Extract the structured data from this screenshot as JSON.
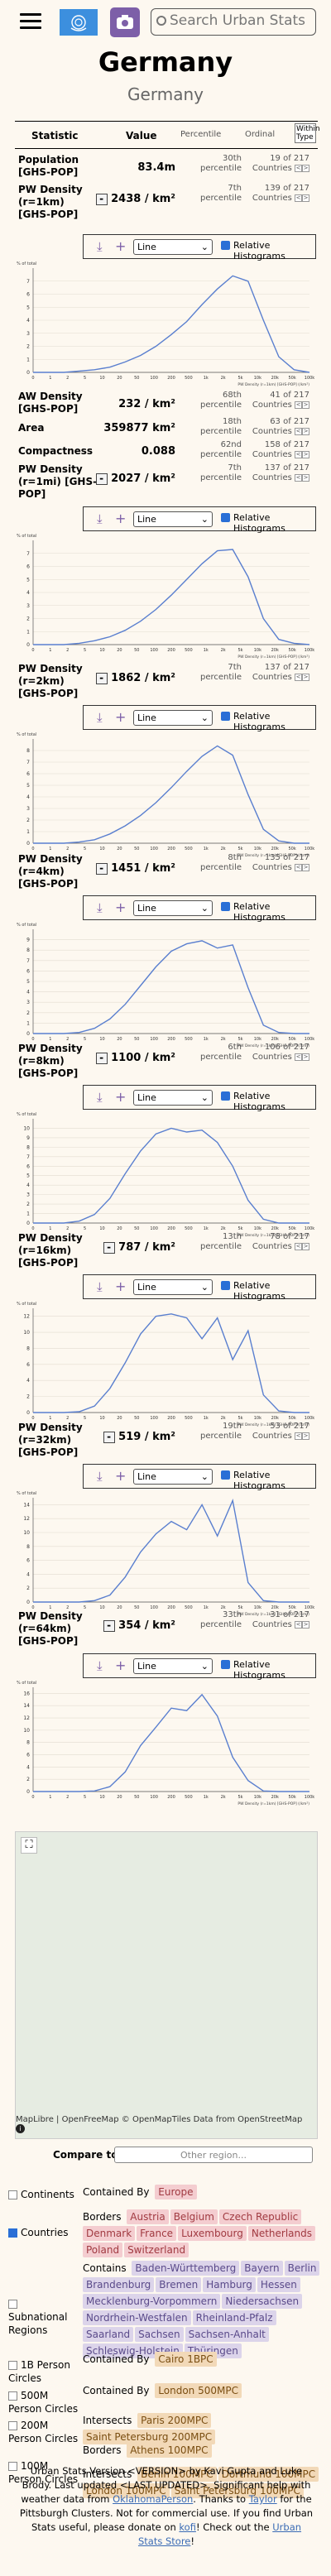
{
  "header": {
    "search_placeholder": "Search Urban Stats"
  },
  "title": "Germany",
  "subtitle": "Germany",
  "table_headers": {
    "statistic": "Statistic",
    "value": "Value",
    "percentile": "Percentile",
    "ordinal": "Ordinal",
    "within_type": "Within Type"
  },
  "rows": [
    {
      "name": "Population [GHS-POP]",
      "value": "83.4m",
      "pct1": "30th",
      "pct2": "percentile",
      "ord1": "19 of 217",
      "ord2": "Countries"
    },
    {
      "name": "PW Density (r=1km) [GHS-POP]",
      "value": "2438 / km²",
      "pct1": "7th",
      "pct2": "percentile",
      "ord1": "139 of 217",
      "ord2": "Countries"
    },
    {
      "name": "AW Density [GHS-POP]",
      "value": "232 / km²",
      "pct1": "68th",
      "pct2": "percentile",
      "ord1": "41 of 217",
      "ord2": "Countries"
    },
    {
      "name": "Area",
      "value": "359877 km²",
      "pct1": "18th",
      "pct2": "percentile",
      "ord1": "63 of 217",
      "ord2": "Countries"
    },
    {
      "name": "Compactness",
      "value": "0.088",
      "pct1": "62nd",
      "pct2": "percentile",
      "ord1": "158 of 217",
      "ord2": "Countries"
    },
    {
      "name": "PW Density (r=1mi) [GHS-POP]",
      "value": "2027 / km²",
      "pct1": "7th",
      "pct2": "percentile",
      "ord1": "137 of 217",
      "ord2": "Countries"
    },
    {
      "name": "PW Density (r=2km) [GHS-POP]",
      "value": "1862 / km²",
      "pct1": "7th",
      "pct2": "percentile",
      "ord1": "137 of 217",
      "ord2": "Countries"
    },
    {
      "name": "PW Density (r=4km) [GHS-POP]",
      "value": "1451 / km²",
      "pct1": "8th",
      "pct2": "percentile",
      "ord1": "135 of 217",
      "ord2": "Countries"
    },
    {
      "name": "PW Density (r=8km) [GHS-POP]",
      "value": "1100 / km²",
      "pct1": "6th",
      "pct2": "percentile",
      "ord1": "106 of 217",
      "ord2": "Countries"
    },
    {
      "name": "PW Density (r=16km) [GHS-POP]",
      "value": "787 / km²",
      "pct1": "13th",
      "pct2": "percentile",
      "ord1": "78 of 217",
      "ord2": "Countries"
    },
    {
      "name": "PW Density (r=32km) [GHS-POP]",
      "value": "519 / km²",
      "pct1": "19th",
      "pct2": "percentile",
      "ord1": "53 of 217",
      "ord2": "Countries"
    },
    {
      "name": "PW Density (r=64km) [GHS-POP]",
      "value": "354 / km²",
      "pct1": "33th",
      "pct2": "percentile",
      "ord1": "31 of 217",
      "ord2": "Countries"
    }
  ],
  "hist_controls": {
    "select_value": "Line",
    "relative_label": "Relative Histograms"
  },
  "map": {
    "attribution": "MapLibre | OpenFreeMap © OpenMapTiles Data from OpenStreetMap"
  },
  "compare": {
    "label": "Compare to:",
    "placeholder": "Other region..."
  },
  "related": [
    {
      "kind": "Continents",
      "checked": false,
      "lines": [
        {
          "verb": "Contained By",
          "tags": [
            "Europe"
          ],
          "color": "red"
        }
      ]
    },
    {
      "kind": "Countries",
      "checked": true,
      "lines": [
        {
          "verb": "Borders",
          "tags": [
            "Austria",
            "Belgium",
            "Czech Republic",
            "Denmark",
            "France",
            "Luxembourg",
            "Netherlands",
            "Poland",
            "Switzerland"
          ],
          "color": "red"
        }
      ]
    },
    {
      "kind": "Subnational Regions",
      "checked": false,
      "lines": [
        {
          "verb": "Contains",
          "tags": [
            "Baden-Württemberg",
            "Bayern",
            "Berlin",
            "Brandenburg",
            "Bremen",
            "Hamburg",
            "Hessen",
            "Mecklenburg-Vorpommern",
            "Niedersachsen",
            "Nordrhein-Westfalen",
            "Rheinland-Pfalz",
            "Saarland",
            "Sachsen",
            "Sachsen-Anhalt",
            "Schleswig-Holstein",
            "Thüringen"
          ],
          "color": "purple"
        }
      ]
    },
    {
      "kind": "1B Person Circles",
      "checked": false,
      "lines": [
        {
          "verb": "Contained By",
          "tags": [
            "Cairo 1BPC"
          ],
          "color": "orange"
        }
      ]
    },
    {
      "kind": "500M Person Circles",
      "checked": false,
      "lines": [
        {
          "verb": "Contained By",
          "tags": [
            "London 500MPC"
          ],
          "color": "orange"
        }
      ]
    },
    {
      "kind": "200M Person Circles",
      "checked": false,
      "lines": [
        {
          "verb": "Intersects",
          "tags": [
            "Paris 200MPC",
            "Saint Petersburg 200MPC"
          ],
          "color": "orange"
        }
      ]
    },
    {
      "kind": "100M Person Circles",
      "checked": false,
      "lines": [
        {
          "verb": "Borders",
          "tags": [
            "Athens 100MPC"
          ],
          "color": "orange"
        },
        {
          "verb": "Intersects",
          "tags": [
            "Berlin 100MPC",
            "Dortmund 100MPC",
            "London 100MPC",
            "Saint Petersburg 100MPC"
          ],
          "color": "orange"
        }
      ]
    }
  ],
  "footer": {
    "t1": "Urban Stats Version <VERSION> by Kavi Gupta and Luke Brody. Last updated <LAST UPDATED>. Significant help with weather data from ",
    "l1": "OklahomaPerson",
    "t2": ". Thanks to ",
    "l2": "Taylor",
    "t3": " for the Pittsburgh Clusters. Not for commercial use. If you find Urban Stats useful, please donate on ",
    "l3": "kofi",
    "t4": "! Check out the ",
    "l4": "Urban Stats Store",
    "t5": "!"
  },
  "charts_meta": {
    "y_label": "% of total",
    "x_label": "PW Density (r=1km) [GHS-POP] (/km²)",
    "x_ticks": [
      "0",
      "1",
      "2",
      "5",
      "10",
      "20",
      "50",
      "100",
      "200",
      "500",
      "1k",
      "2k",
      "5k",
      "10k",
      "20k",
      "50k",
      "100k"
    ]
  },
  "chart_data": [
    {
      "type": "line",
      "label": "r=1km",
      "x_ticks": [
        "0",
        "1",
        "2",
        "5",
        "10",
        "20",
        "50",
        "100",
        "200",
        "500",
        "1k",
        "2k",
        "5k",
        "10k",
        "20k",
        "50k",
        "100k"
      ],
      "y_ticks": [
        "0",
        "1",
        "2",
        "3",
        "4",
        "5",
        "6",
        "7"
      ],
      "ylim": [
        0,
        8
      ],
      "values": [
        0,
        0,
        0,
        0.1,
        0.2,
        0.4,
        0.8,
        1.3,
        2.0,
        2.9,
        3.9,
        5.2,
        6.4,
        7.4,
        7.0,
        4.0,
        1.2,
        0.2,
        0
      ]
    },
    {
      "type": "line",
      "label": "r=1mi",
      "x_ticks": [
        "0",
        "1",
        "2",
        "5",
        "10",
        "20",
        "50",
        "100",
        "200",
        "500",
        "1k",
        "2k",
        "5k",
        "10k",
        "20k",
        "50k",
        "100k"
      ],
      "y_ticks": [
        "0",
        "1",
        "2",
        "3",
        "4",
        "5",
        "6",
        "7"
      ],
      "ylim": [
        0,
        8
      ],
      "values": [
        0,
        0,
        0,
        0.1,
        0.3,
        0.6,
        1.1,
        1.8,
        2.7,
        3.8,
        5.0,
        6.2,
        7.2,
        7.3,
        5.2,
        2.0,
        0.4,
        0.1,
        0
      ]
    },
    {
      "type": "line",
      "label": "r=2km",
      "x_ticks": [
        "0",
        "1",
        "2",
        "5",
        "10",
        "20",
        "50",
        "100",
        "200",
        "500",
        "1k",
        "2k",
        "5k",
        "10k",
        "20k",
        "50k",
        "100k"
      ],
      "y_ticks": [
        "0",
        "1",
        "2",
        "3",
        "4",
        "5",
        "6",
        "7",
        "8"
      ],
      "ylim": [
        0,
        9
      ],
      "values": [
        0,
        0,
        0,
        0.1,
        0.3,
        0.8,
        1.5,
        2.4,
        3.5,
        4.8,
        6.2,
        7.5,
        8.4,
        7.6,
        4.2,
        1.2,
        0.2,
        0,
        0
      ]
    },
    {
      "type": "line",
      "label": "r=4km",
      "x_ticks": [
        "0",
        "1",
        "2",
        "5",
        "10",
        "20",
        "50",
        "100",
        "200",
        "500",
        "1k",
        "2k",
        "5k",
        "10k",
        "20k",
        "50k",
        "100k"
      ],
      "y_ticks": [
        "0",
        "1",
        "2",
        "3",
        "4",
        "5",
        "6",
        "7",
        "8",
        "9"
      ],
      "ylim": [
        0,
        10
      ],
      "values": [
        0,
        0,
        0,
        0.1,
        0.5,
        1.4,
        2.8,
        4.6,
        6.4,
        7.9,
        8.6,
        8.9,
        8.2,
        8.5,
        4.4,
        0.8,
        0.1,
        0,
        0
      ]
    },
    {
      "type": "line",
      "label": "r=8km",
      "x_ticks": [
        "0",
        "1",
        "2",
        "5",
        "10",
        "20",
        "50",
        "100",
        "200",
        "500",
        "1k",
        "2k",
        "5k",
        "10k",
        "20k",
        "50k",
        "100k"
      ],
      "y_ticks": [
        "0",
        "1",
        "2",
        "3",
        "4",
        "5",
        "6",
        "7",
        "8",
        "9",
        "10"
      ],
      "ylim": [
        0,
        11
      ],
      "values": [
        0,
        0,
        0,
        0.2,
        0.9,
        2.6,
        5.2,
        7.6,
        9.4,
        10.0,
        9.6,
        9.8,
        8.5,
        6.0,
        2.4,
        0.4,
        0,
        0,
        0
      ]
    },
    {
      "type": "line",
      "label": "r=16km",
      "x_ticks": [
        "0",
        "1",
        "2",
        "5",
        "10",
        "20",
        "50",
        "100",
        "200",
        "500",
        "1k",
        "2k",
        "5k",
        "10k",
        "20k",
        "50k",
        "100k"
      ],
      "y_ticks": [
        "0",
        "2",
        "4",
        "6",
        "8",
        "10",
        "12"
      ],
      "ylim": [
        0,
        13
      ],
      "values": [
        0,
        0,
        0,
        0.1,
        0.8,
        3.0,
        6.2,
        9.8,
        12.0,
        12.3,
        11.8,
        9.2,
        11.8,
        6.6,
        10.2,
        2.2,
        0.2,
        0,
        0
      ]
    },
    {
      "type": "line",
      "label": "r=32km",
      "x_ticks": [
        "0",
        "1",
        "2",
        "5",
        "10",
        "20",
        "50",
        "100",
        "200",
        "500",
        "1k",
        "2k",
        "5k",
        "10k",
        "20k",
        "50k",
        "100k"
      ],
      "y_ticks": [
        "0",
        "2",
        "4",
        "6",
        "8",
        "10",
        "12",
        "14"
      ],
      "ylim": [
        0,
        15
      ],
      "values": [
        0,
        0,
        0,
        0,
        0.2,
        1.0,
        3.6,
        7.2,
        9.8,
        11.6,
        10.4,
        14.0,
        9.5,
        14.6,
        2.8,
        0.2,
        0,
        0,
        0
      ]
    },
    {
      "type": "line",
      "label": "r=64km",
      "x_ticks": [
        "0",
        "1",
        "2",
        "5",
        "10",
        "20",
        "50",
        "100",
        "200",
        "500",
        "1k",
        "2k",
        "5k",
        "10k",
        "20k",
        "50k",
        "100k"
      ],
      "y_ticks": [
        "0",
        "2",
        "4",
        "6",
        "8",
        "10",
        "12",
        "14",
        "16"
      ],
      "ylim": [
        0,
        17
      ],
      "values": [
        0,
        0,
        0,
        0,
        0.1,
        0.8,
        3.2,
        7.5,
        10.5,
        13.6,
        13.2,
        15.8,
        12.3,
        5.6,
        1.8,
        0.1,
        0,
        0,
        0
      ]
    }
  ]
}
